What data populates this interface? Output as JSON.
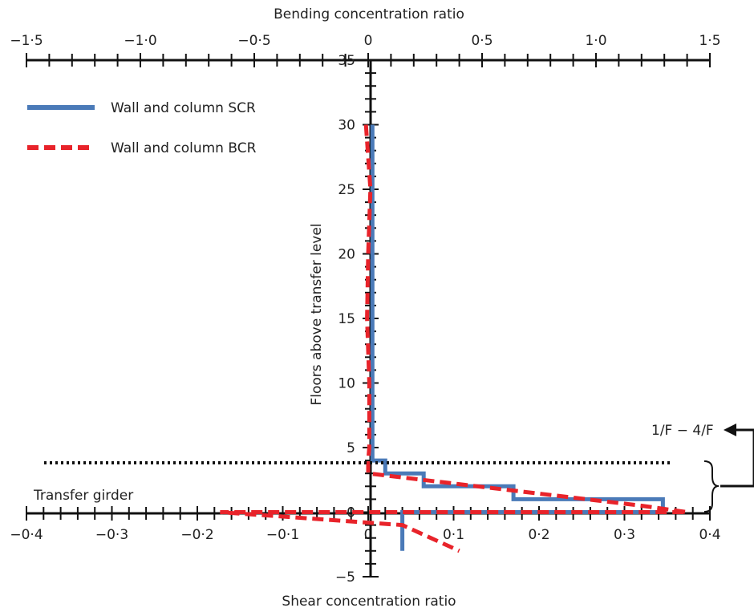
{
  "chart_data": {
    "type": "line",
    "top_axis": {
      "label": "Bending concentration ratio",
      "range": [
        -1.5,
        1.5
      ],
      "ticks": [
        -1.5,
        -1.0,
        -0.5,
        0,
        0.5,
        1.0,
        1.5
      ],
      "tick_labels": [
        "−1·5",
        "−1·0",
        "−0·5",
        "0",
        "0·5",
        "1·0",
        "1·5"
      ]
    },
    "bottom_axis": {
      "label": "Shear concentration ratio",
      "range": [
        -0.4,
        0.4
      ],
      "ticks": [
        -0.4,
        -0.3,
        -0.2,
        -0.1,
        0,
        0.1,
        0.2,
        0.3,
        0.4
      ],
      "tick_labels": [
        "−0·4",
        "−0·3",
        "−0·2",
        "−0·1",
        "0",
        "0·1",
        "0·2",
        "0·3",
        "0·4"
      ]
    },
    "y_axis": {
      "label": "Floors above transfer level",
      "range": [
        -5,
        35
      ],
      "ticks": [
        -5,
        0,
        5,
        10,
        15,
        20,
        25,
        30,
        35
      ],
      "tick_labels": [
        "−5",
        "0",
        "5",
        "10",
        "15",
        "20",
        "25",
        "30",
        "35"
      ]
    },
    "series": [
      {
        "name": "Wall and column SCR",
        "axis": "shear",
        "color": "#4a7ab8",
        "style": "solid",
        "points": [
          [
            0.005,
            30
          ],
          [
            0.005,
            4
          ],
          [
            0.02,
            4
          ],
          [
            0.02,
            3
          ],
          [
            0.065,
            3
          ],
          [
            0.065,
            2
          ],
          [
            0.17,
            2
          ],
          [
            0.17,
            1
          ],
          [
            0.345,
            1
          ],
          [
            0.345,
            0
          ],
          [
            0.04,
            0
          ],
          [
            0.04,
            -3
          ]
        ]
      },
      {
        "name": "Wall and column BCR",
        "axis": "bending",
        "color": "#e8232a",
        "style": "dashed",
        "points": [
          [
            -0.01,
            30
          ],
          [
            0.01,
            25
          ],
          [
            0.0,
            20
          ],
          [
            -0.005,
            15
          ],
          [
            0.005,
            10
          ],
          [
            0.005,
            5
          ],
          [
            0.0,
            4
          ],
          [
            0.0,
            3
          ],
          [
            1.2,
            0.5
          ],
          [
            1.4,
            0
          ],
          [
            -0.65,
            0
          ],
          [
            0.15,
            -1
          ],
          [
            0.4,
            -3
          ]
        ]
      }
    ],
    "annotations": {
      "transfer_girder": "Transfer girder",
      "floor_range": "1/F − 4/F"
    },
    "legend_position": "top-left",
    "grid": false
  }
}
